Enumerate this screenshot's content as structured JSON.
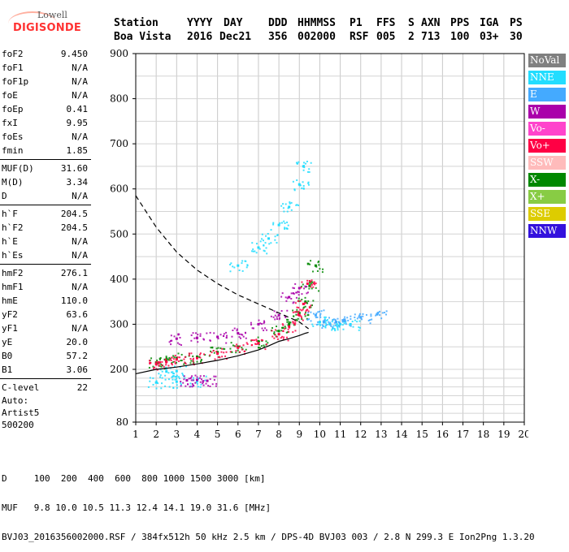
{
  "logo": {
    "line1": "Lowell",
    "line2": "DIGISONDE"
  },
  "header": {
    "labels": [
      "Station",
      "YYYY",
      "DAY",
      "DDD",
      "HHMMSS",
      "P1",
      "FFS",
      "S",
      "AXN",
      "PPS",
      "IGA",
      "PS"
    ],
    "values": [
      "Boa Vista",
      "2016",
      "Dec21",
      "356",
      "002000",
      "RSF",
      "005",
      "2",
      "713",
      "100",
      "03+",
      "30"
    ]
  },
  "params": [
    [
      {
        "name": "foF2",
        "value": "9.450"
      },
      {
        "name": "foF1",
        "value": "N/A"
      },
      {
        "name": "foF1p",
        "value": "N/A"
      },
      {
        "name": "foE",
        "value": "N/A"
      },
      {
        "name": "foEp",
        "value": "0.41"
      },
      {
        "name": "fxI",
        "value": "9.95"
      },
      {
        "name": "foEs",
        "value": "N/A"
      },
      {
        "name": "fmin",
        "value": "1.85"
      }
    ],
    [
      {
        "name": "MUF(D)",
        "value": "31.60"
      },
      {
        "name": "M(D)",
        "value": "3.34"
      },
      {
        "name": "D",
        "value": "N/A"
      }
    ],
    [
      {
        "name": "h`F",
        "value": "204.5"
      },
      {
        "name": "h`F2",
        "value": "204.5"
      },
      {
        "name": "h`E",
        "value": "N/A"
      },
      {
        "name": "h`Es",
        "value": "N/A"
      }
    ],
    [
      {
        "name": "hmF2",
        "value": "276.1"
      },
      {
        "name": "hmF1",
        "value": "N/A"
      },
      {
        "name": "hmE",
        "value": "110.0"
      },
      {
        "name": "yF2",
        "value": "63.6"
      },
      {
        "name": "yF1",
        "value": "N/A"
      },
      {
        "name": "yE",
        "value": "20.0"
      },
      {
        "name": "B0",
        "value": "57.2"
      },
      {
        "name": "B1",
        "value": "3.06"
      }
    ],
    [
      {
        "name": "C-level",
        "value": "22"
      }
    ]
  ],
  "auto": {
    "line1": "Auto:",
    "line2": "Artist5",
    "line3": "500200"
  },
  "legend": [
    {
      "label": "NoVal",
      "color": "#808080"
    },
    {
      "label": "NNE",
      "color": "#22ddff"
    },
    {
      "label": "E",
      "color": "#44aaff"
    },
    {
      "label": "W",
      "color": "#aa00aa"
    },
    {
      "label": "Vo-",
      "color": "#ff44cc"
    },
    {
      "label": "Vo+",
      "color": "#ff0044"
    },
    {
      "label": "SSW",
      "color": "#ffbbbb"
    },
    {
      "label": "X-",
      "color": "#008800"
    },
    {
      "label": "X+",
      "color": "#88cc44"
    },
    {
      "label": "SSE",
      "color": "#ddcc00"
    },
    {
      "label": "NNW",
      "color": "#3311dd"
    }
  ],
  "footer": {
    "line1": "D     100  200  400  600  800 1000 1500 3000 [km]",
    "line2": "MUF   9.8 10.0 10.5 11.3 12.4 14.1 19.0 31.6 [MHz]",
    "line3": "BVJ03_2016356002000.RSF / 384fx512h 50 kHz 2.5 km / DPS-4D BVJ03 003 / 2.8 N 299.3 E Ion2Png 1.3.20"
  },
  "chart_data": {
    "type": "scatter",
    "xlim": [
      1,
      20
    ],
    "ylim": [
      80,
      900
    ],
    "xticks": [
      "1",
      "2",
      "3",
      "4",
      "5",
      "6",
      "7",
      "8",
      "9",
      "10",
      "11",
      "12",
      "13",
      "14",
      "15",
      "16",
      "17",
      "18",
      "19",
      "20"
    ],
    "yticks": [
      "80",
      "200",
      "300",
      "400",
      "500",
      "600",
      "700",
      "800",
      "900"
    ],
    "series": [
      {
        "name": "X-",
        "color": "#008800",
        "points": [
          [
            2.0,
            215
          ],
          [
            2.5,
            220
          ],
          [
            3.0,
            225
          ],
          [
            4.0,
            228
          ],
          [
            5.0,
            238
          ],
          [
            6.0,
            250
          ],
          [
            7.0,
            262
          ],
          [
            8.0,
            285
          ],
          [
            8.5,
            300
          ],
          [
            9.0,
            325
          ],
          [
            9.3,
            350
          ],
          [
            9.5,
            385
          ],
          [
            9.8,
            430
          ]
        ]
      },
      {
        "name": "Vo+",
        "color": "#ff0044",
        "points": [
          [
            2.0,
            212
          ],
          [
            2.5,
            217
          ],
          [
            3.0,
            222
          ],
          [
            4.0,
            225
          ],
          [
            5.0,
            235
          ],
          [
            6.0,
            248
          ],
          [
            7.0,
            258
          ],
          [
            8.0,
            278
          ],
          [
            8.5,
            295
          ],
          [
            9.0,
            320
          ],
          [
            9.2,
            345
          ],
          [
            9.4,
            390
          ]
        ]
      },
      {
        "name": "NNE",
        "color": "#22ddff",
        "points": [
          [
            2.0,
            170
          ],
          [
            3.0,
            172
          ],
          [
            4.0,
            173
          ],
          [
            2.5,
            195
          ],
          [
            3.0,
            196
          ],
          [
            6.0,
            430
          ],
          [
            7.0,
            470
          ],
          [
            7.5,
            490
          ],
          [
            8.0,
            520
          ],
          [
            8.5,
            560
          ],
          [
            9.0,
            610
          ],
          [
            9.2,
            650
          ],
          [
            10.0,
            305
          ],
          [
            10.5,
            300
          ],
          [
            11.0,
            300
          ],
          [
            11.5,
            300
          ]
        ]
      },
      {
        "name": "E",
        "color": "#44aaff",
        "points": [
          [
            9.8,
            320
          ],
          [
            10.2,
            305
          ],
          [
            10.8,
            305
          ],
          [
            11.2,
            310
          ],
          [
            12.0,
            315
          ],
          [
            12.8,
            322
          ]
        ]
      },
      {
        "name": "W",
        "color": "#aa00aa",
        "points": [
          [
            3.0,
            268
          ],
          [
            4.0,
            270
          ],
          [
            5.0,
            272
          ],
          [
            6.0,
            280
          ],
          [
            7.0,
            300
          ],
          [
            8.0,
            320
          ],
          [
            8.5,
            360
          ],
          [
            9.0,
            380
          ],
          [
            3.5,
            175
          ],
          [
            4.0,
            176
          ],
          [
            4.5,
            174
          ]
        ]
      }
    ],
    "lines": [
      {
        "name": "profile",
        "style": "solid",
        "points": [
          [
            1.0,
            190
          ],
          [
            2.0,
            200
          ],
          [
            3.0,
            205
          ],
          [
            4.0,
            212
          ],
          [
            5.0,
            220
          ],
          [
            6.0,
            230
          ],
          [
            7.0,
            243
          ],
          [
            7.5,
            252
          ],
          [
            8.0,
            262
          ],
          [
            8.5,
            268
          ],
          [
            9.0,
            275
          ],
          [
            9.3,
            280
          ],
          [
            9.45,
            282
          ]
        ]
      },
      {
        "name": "muf-curve",
        "style": "dashed",
        "points": [
          [
            1.0,
            585
          ],
          [
            2.0,
            515
          ],
          [
            3.0,
            460
          ],
          [
            4.0,
            420
          ],
          [
            5.0,
            390
          ],
          [
            6.0,
            365
          ],
          [
            7.0,
            345
          ],
          [
            8.0,
            325
          ],
          [
            9.0,
            305
          ],
          [
            9.45,
            290
          ]
        ]
      }
    ]
  }
}
